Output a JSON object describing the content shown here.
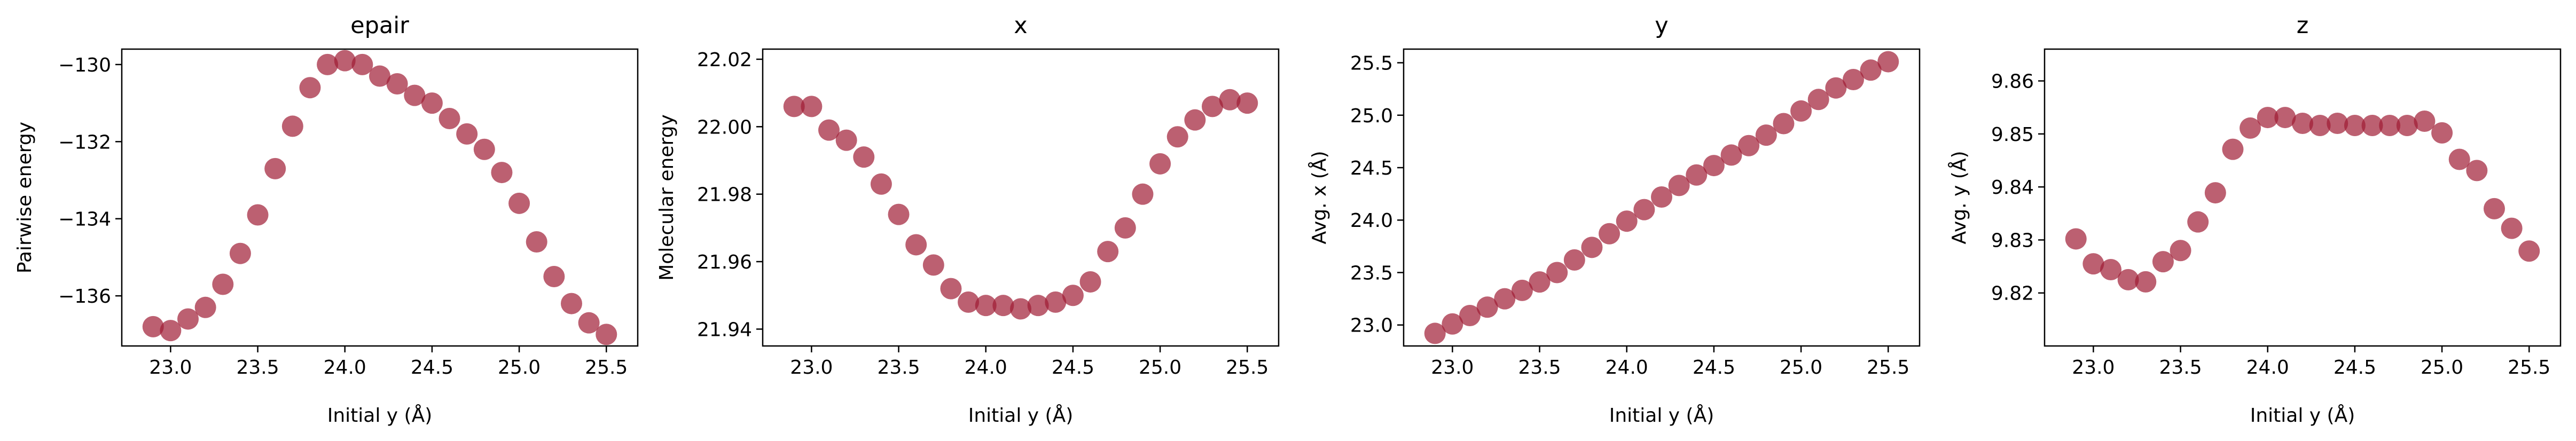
{
  "figure": {
    "marker_color": "#a01c35"
  },
  "chart_data": [
    {
      "type": "scatter",
      "title": "epair",
      "xlabel": "Initial y (Å)",
      "ylabel": "Pairwise energy",
      "xlim": [
        22.72,
        25.68
      ],
      "ylim": [
        -137.3,
        -129.6
      ],
      "xticks": [
        23.0,
        23.5,
        24.0,
        24.5,
        25.0,
        25.5
      ],
      "xtick_labels": [
        "23.0",
        "23.5",
        "24.0",
        "24.5",
        "25.0",
        "25.5"
      ],
      "yticks": [
        -136,
        -134,
        -132,
        -130
      ],
      "ytick_labels": [
        "−136",
        "−134",
        "−132",
        "−130"
      ],
      "x": [
        22.9,
        23.0,
        23.1,
        23.2,
        23.3,
        23.4,
        23.5,
        23.6,
        23.7,
        23.8,
        23.9,
        24.0,
        24.1,
        24.2,
        24.3,
        24.4,
        24.5,
        24.6,
        24.7,
        24.8,
        24.9,
        25.0,
        25.1,
        25.2,
        25.3,
        25.4,
        25.5
      ],
      "y": [
        -136.8,
        -136.9,
        -136.6,
        -136.3,
        -135.7,
        -134.9,
        -133.9,
        -132.7,
        -131.6,
        -130.6,
        -130.0,
        -129.9,
        -130.0,
        -130.3,
        -130.5,
        -130.8,
        -131.0,
        -131.4,
        -131.8,
        -132.2,
        -132.8,
        -133.6,
        -134.6,
        -135.5,
        -136.2,
        -136.7,
        -137.0
      ]
    },
    {
      "type": "scatter",
      "title": "x",
      "xlabel": "Initial y (Å)",
      "ylabel": "Molecular energy",
      "xlim": [
        22.72,
        25.68
      ],
      "ylim": [
        21.935,
        22.023
      ],
      "xticks": [
        23.0,
        23.5,
        24.0,
        24.5,
        25.0,
        25.5
      ],
      "xtick_labels": [
        "23.0",
        "23.5",
        "24.0",
        "24.5",
        "25.0",
        "25.5"
      ],
      "yticks": [
        21.94,
        21.96,
        21.98,
        22.0,
        22.02
      ],
      "ytick_labels": [
        "21.94",
        "21.96",
        "21.98",
        "22.00",
        "22.02"
      ],
      "x": [
        22.9,
        23.0,
        23.1,
        23.2,
        23.3,
        23.4,
        23.5,
        23.6,
        23.7,
        23.8,
        23.9,
        24.0,
        24.1,
        24.2,
        24.3,
        24.4,
        24.5,
        24.6,
        24.7,
        24.8,
        24.9,
        25.0,
        25.1,
        25.2,
        25.3,
        25.4,
        25.5
      ],
      "y": [
        22.006,
        22.006,
        21.999,
        21.996,
        21.991,
        21.983,
        21.974,
        21.965,
        21.959,
        21.952,
        21.948,
        21.947,
        21.947,
        21.946,
        21.947,
        21.948,
        21.95,
        21.954,
        21.963,
        21.97,
        21.98,
        21.989,
        21.997,
        22.002,
        22.006,
        22.008,
        22.007
      ]
    },
    {
      "type": "scatter",
      "title": "y",
      "xlabel": "Initial y (Å)",
      "ylabel": "Avg. x (Å)",
      "xlim": [
        22.72,
        25.68
      ],
      "ylim": [
        22.8,
        25.63
      ],
      "xticks": [
        23.0,
        23.5,
        24.0,
        24.5,
        25.0,
        25.5
      ],
      "xtick_labels": [
        "23.0",
        "23.5",
        "24.0",
        "24.5",
        "25.0",
        "25.5"
      ],
      "yticks": [
        23.0,
        23.5,
        24.0,
        24.5,
        25.0,
        25.5
      ],
      "ytick_labels": [
        "23.0",
        "23.5",
        "24.0",
        "24.5",
        "25.0",
        "25.5"
      ],
      "x": [
        22.9,
        23.0,
        23.1,
        23.2,
        23.3,
        23.4,
        23.5,
        23.6,
        23.7,
        23.8,
        23.9,
        24.0,
        24.1,
        24.2,
        24.3,
        24.4,
        24.5,
        24.6,
        24.7,
        24.8,
        24.9,
        25.0,
        25.1,
        25.2,
        25.3,
        25.4,
        25.5
      ],
      "y": [
        22.92,
        23.01,
        23.09,
        23.17,
        23.25,
        23.33,
        23.41,
        23.5,
        23.62,
        23.74,
        23.87,
        23.99,
        24.1,
        24.22,
        24.33,
        24.43,
        24.52,
        24.62,
        24.71,
        24.81,
        24.92,
        25.04,
        25.15,
        25.26,
        25.34,
        25.43,
        25.51
      ]
    },
    {
      "type": "scatter",
      "title": "z",
      "xlabel": "Initial y (Å)",
      "ylabel": "Avg. y (Å)",
      "xlim": [
        22.72,
        25.68
      ],
      "ylim": [
        9.81,
        9.866
      ],
      "xticks": [
        23.0,
        23.5,
        24.0,
        24.5,
        25.0,
        25.5
      ],
      "xtick_labels": [
        "23.0",
        "23.5",
        "24.0",
        "24.5",
        "25.0",
        "25.5"
      ],
      "yticks": [
        9.82,
        9.83,
        9.84,
        9.85,
        9.86
      ],
      "ytick_labels": [
        "9.82",
        "9.83",
        "9.84",
        "9.85",
        "9.86"
      ],
      "x": [
        22.9,
        23.0,
        23.1,
        23.2,
        23.3,
        23.4,
        23.5,
        23.6,
        23.7,
        23.8,
        23.9,
        24.0,
        24.1,
        24.2,
        24.3,
        24.4,
        24.5,
        24.6,
        24.7,
        24.8,
        24.9,
        25.0,
        25.1,
        25.2,
        25.3,
        25.4,
        25.5
      ],
      "y": [
        9.8302,
        9.8255,
        9.8244,
        9.8225,
        9.8221,
        9.8259,
        9.828,
        9.8334,
        9.8389,
        9.8471,
        9.8511,
        9.8531,
        9.8531,
        9.852,
        9.8516,
        9.852,
        9.8516,
        9.8516,
        9.8516,
        9.8516,
        9.8524,
        9.8502,
        9.8452,
        9.8431,
        9.8359,
        9.8322,
        9.8279
      ]
    }
  ]
}
